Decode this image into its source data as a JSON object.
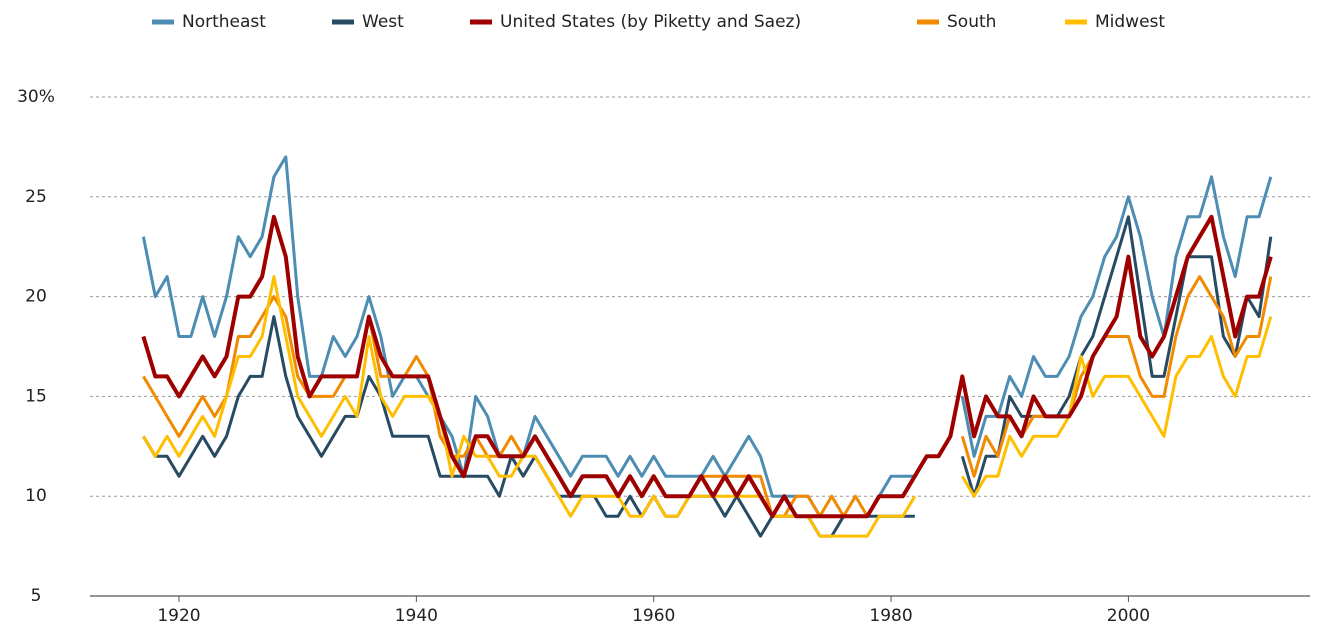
{
  "chart_data": {
    "type": "line",
    "x": [
      1917,
      1918,
      1919,
      1920,
      1921,
      1922,
      1923,
      1924,
      1925,
      1926,
      1927,
      1928,
      1929,
      1930,
      1931,
      1932,
      1933,
      1934,
      1935,
      1936,
      1937,
      1938,
      1939,
      1940,
      1941,
      1942,
      1943,
      1944,
      1945,
      1946,
      1947,
      1948,
      1949,
      1950,
      1951,
      1952,
      1953,
      1954,
      1955,
      1956,
      1957,
      1958,
      1959,
      1960,
      1961,
      1962,
      1963,
      1964,
      1965,
      1966,
      1967,
      1968,
      1969,
      1970,
      1971,
      1972,
      1973,
      1974,
      1975,
      1976,
      1977,
      1978,
      1979,
      1980,
      1981,
      1982,
      1983,
      1984,
      1985,
      1986,
      1987,
      1988,
      1989,
      1990,
      1991,
      1992,
      1993,
      1994,
      1995,
      1996,
      1997,
      1998,
      1999,
      2000,
      2001,
      2002,
      2003,
      2004,
      2005,
      2006,
      2007,
      2008,
      2009,
      2010,
      2011,
      2012
    ],
    "series": [
      {
        "name": "Northeast",
        "color": "#4d8db3",
        "values": [
          23,
          20,
          21,
          18,
          18,
          20,
          18,
          20,
          23,
          22,
          23,
          26,
          27,
          20,
          16,
          16,
          18,
          17,
          18,
          20,
          18,
          15,
          16,
          16,
          15,
          14,
          13,
          11,
          15,
          14,
          12,
          12,
          12,
          14,
          13,
          12,
          11,
          12,
          12,
          12,
          11,
          12,
          11,
          12,
          11,
          11,
          11,
          11,
          12,
          11,
          12,
          13,
          12,
          10,
          10,
          10,
          10,
          9,
          9,
          9,
          9,
          9,
          10,
          11,
          11,
          11,
          null,
          null,
          null,
          15,
          12,
          14,
          14,
          16,
          15,
          17,
          16,
          16,
          17,
          19,
          20,
          22,
          23,
          25,
          23,
          20,
          18,
          22,
          24,
          24,
          26,
          23,
          21,
          24,
          24,
          26
        ]
      },
      {
        "name": "West",
        "color": "#274b63",
        "values": [
          13,
          12,
          12,
          11,
          12,
          13,
          12,
          13,
          15,
          16,
          16,
          19,
          16,
          14,
          13,
          12,
          13,
          14,
          14,
          16,
          15,
          13,
          13,
          13,
          13,
          11,
          11,
          11,
          11,
          11,
          10,
          12,
          11,
          12,
          11,
          10,
          10,
          10,
          10,
          9,
          9,
          10,
          9,
          10,
          9,
          9,
          10,
          10,
          10,
          9,
          10,
          9,
          8,
          9,
          9,
          9,
          9,
          8,
          8,
          9,
          9,
          9,
          9,
          9,
          9,
          9,
          null,
          null,
          null,
          12,
          10,
          12,
          12,
          15,
          14,
          14,
          14,
          14,
          15,
          17,
          18,
          20,
          22,
          24,
          20,
          16,
          16,
          19,
          22,
          22,
          22,
          18,
          17,
          20,
          19,
          23
        ]
      },
      {
        "name": "United States (by Piketty and Saez)",
        "color": "#9e0000",
        "values": [
          18,
          16,
          16,
          15,
          16,
          17,
          16,
          17,
          20,
          20,
          21,
          24,
          22,
          17,
          15,
          16,
          16,
          16,
          16,
          19,
          17,
          16,
          16,
          16,
          16,
          14,
          12,
          11,
          13,
          13,
          12,
          12,
          12,
          13,
          12,
          11,
          10,
          11,
          11,
          11,
          10,
          11,
          10,
          11,
          10,
          10,
          10,
          11,
          10,
          11,
          10,
          11,
          10,
          9,
          10,
          9,
          9,
          9,
          9,
          9,
          9,
          9,
          10,
          10,
          10,
          11,
          12,
          12,
          13,
          16,
          13,
          15,
          14,
          14,
          13,
          15,
          14,
          14,
          14,
          15,
          17,
          18,
          19,
          22,
          18,
          17,
          18,
          20,
          22,
          23,
          24,
          21,
          18,
          20,
          20,
          22
        ]
      },
      {
        "name": "South",
        "color": "#f18a00",
        "values": [
          16,
          15,
          14,
          13,
          14,
          15,
          14,
          15,
          18,
          18,
          19,
          20,
          19,
          16,
          15,
          15,
          15,
          16,
          16,
          19,
          16,
          16,
          16,
          17,
          16,
          13,
          12,
          12,
          13,
          12,
          12,
          13,
          12,
          13,
          12,
          11,
          10,
          11,
          11,
          11,
          10,
          11,
          10,
          11,
          10,
          10,
          10,
          11,
          11,
          11,
          11,
          11,
          11,
          9,
          9,
          10,
          10,
          9,
          10,
          9,
          10,
          9,
          10,
          10,
          10,
          11,
          null,
          null,
          null,
          13,
          11,
          13,
          12,
          14,
          13,
          14,
          14,
          14,
          14,
          16,
          17,
          18,
          18,
          18,
          16,
          15,
          15,
          18,
          20,
          21,
          20,
          19,
          17,
          18,
          18,
          21
        ]
      },
      {
        "name": "Midwest",
        "color": "#ffbf00",
        "values": [
          13,
          12,
          13,
          12,
          13,
          14,
          13,
          15,
          17,
          17,
          18,
          21,
          18,
          15,
          14,
          13,
          14,
          15,
          14,
          18,
          15,
          14,
          15,
          15,
          15,
          14,
          11,
          13,
          12,
          12,
          11,
          11,
          12,
          12,
          11,
          10,
          9,
          10,
          10,
          10,
          10,
          9,
          9,
          10,
          9,
          9,
          10,
          10,
          10,
          10,
          10,
          10,
          10,
          9,
          9,
          9,
          9,
          8,
          8,
          8,
          8,
          8,
          9,
          9,
          9,
          10,
          null,
          null,
          null,
          11,
          10,
          11,
          11,
          13,
          12,
          13,
          13,
          13,
          14,
          17,
          15,
          16,
          16,
          16,
          15,
          14,
          13,
          16,
          17,
          17,
          18,
          16,
          15,
          17,
          17,
          19
        ]
      }
    ],
    "xlim": [
      1912.5,
      2015.3
    ],
    "xticks": [
      1920,
      1940,
      1960,
      1980,
      2000
    ],
    "ylim": [
      5,
      30
    ],
    "yticks": [
      5,
      10,
      15,
      20,
      25,
      {
        "value": 30,
        "label": "30%"
      }
    ],
    "grid": true,
    "legend": "top"
  }
}
